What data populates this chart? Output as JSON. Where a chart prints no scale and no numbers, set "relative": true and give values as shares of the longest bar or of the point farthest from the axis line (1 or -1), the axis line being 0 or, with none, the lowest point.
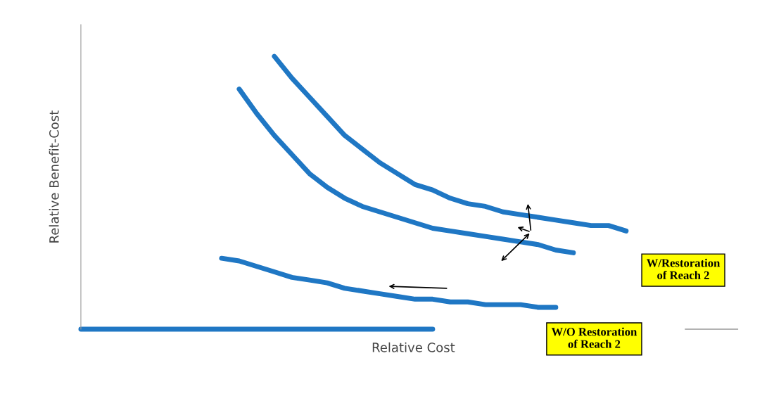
{
  "chart_data": {
    "type": "line",
    "relative": true,
    "xlabel": "Relative Cost",
    "ylabel": "Relative Benefit-Cost",
    "marker": "none",
    "line_style": "solid",
    "annotations": [
      "W/Restoration\nof Reach 2",
      "W/O Restoration\nof Reach 2"
    ],
    "categories": [
      null,
      null,
      null,
      null,
      null,
      null,
      null,
      null,
      null,
      null,
      null,
      null,
      null,
      null,
      null,
      null,
      null,
      null,
      null,
      null,
      null,
      null,
      null,
      null,
      null,
      null,
      null,
      null,
      null,
      null,
      null,
      null,
      null,
      null,
      null,
      null,
      null,
      null
    ],
    "series": [
      {
        "color": "#1f77c4",
        "values": [
          null,
          null,
          null,
          null,
          null,
          null,
          null,
          null,
          null,
          null,
          null,
          1.0,
          0.92,
          0.85,
          0.78,
          0.71,
          0.66,
          0.61,
          0.57,
          0.53,
          0.51,
          0.48,
          0.46,
          0.45,
          0.43,
          0.42,
          0.41,
          0.4,
          0.39,
          0.38,
          0.38,
          0.36,
          null,
          null,
          null,
          null,
          null,
          null
        ]
      },
      {
        "color": "#1f77c4",
        "values": [
          null,
          null,
          null,
          null,
          null,
          null,
          null,
          null,
          null,
          0.88,
          0.79,
          0.71,
          0.64,
          0.57,
          0.52,
          0.48,
          0.45,
          0.43,
          0.41,
          0.39,
          0.37,
          0.36,
          0.35,
          0.34,
          0.33,
          0.32,
          0.31,
          0.29,
          0.28,
          null,
          null,
          null,
          null,
          null,
          null,
          null,
          null,
          null
        ]
      },
      {
        "color": "#1f77c4",
        "values": [
          null,
          null,
          null,
          null,
          null,
          null,
          null,
          null,
          0.26,
          0.25,
          0.23,
          0.21,
          0.19,
          0.18,
          0.17,
          0.15,
          0.14,
          0.13,
          0.12,
          0.11,
          0.11,
          0.1,
          0.1,
          0.09,
          0.09,
          0.09,
          0.08,
          0.08,
          null,
          null,
          null,
          null,
          null,
          null,
          null,
          null,
          null,
          null
        ]
      },
      {
        "color": "#1f77c4",
        "values": [
          0,
          0,
          0,
          0,
          0,
          0,
          0,
          0,
          0,
          0,
          0,
          0,
          0,
          0,
          0,
          0,
          0,
          0,
          0,
          0,
          0,
          null,
          null,
          null,
          null,
          null,
          null,
          null,
          null,
          null,
          null,
          null,
          null,
          null,
          null,
          null,
          null,
          null
        ]
      }
    ]
  }
}
